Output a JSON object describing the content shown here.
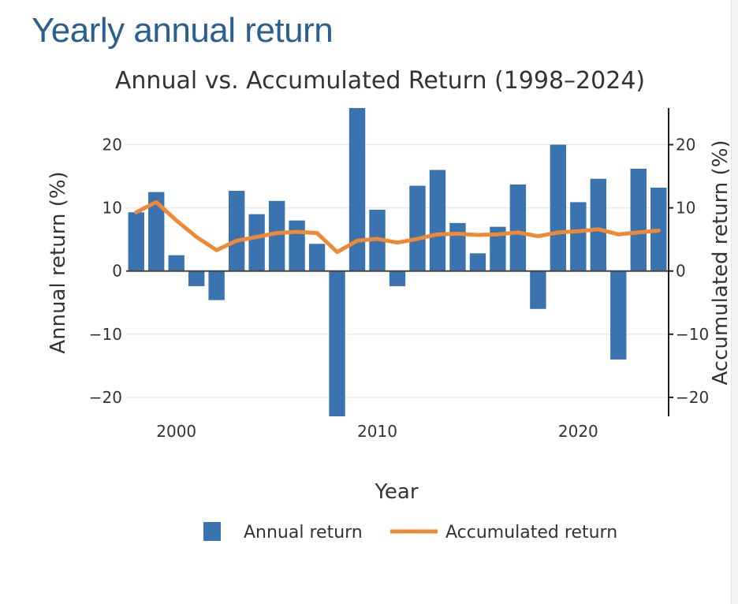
{
  "page": {
    "heading": "Yearly annual return"
  },
  "colors": {
    "heading": "#2a5f8f",
    "bar": "#3a73b0",
    "line": "#ee8a35",
    "grid": "#e9e9e9",
    "text": "#333333"
  },
  "chart_data": {
    "type": "bar",
    "title": "Annual vs. Accumulated Return (1998–2024)",
    "xlabel": "Year",
    "ylabel": "Annual return (%)",
    "y2label": "Accumulated return (%)",
    "x": [
      1998,
      1999,
      2000,
      2001,
      2002,
      2003,
      2004,
      2005,
      2006,
      2007,
      2008,
      2009,
      2010,
      2011,
      2012,
      2013,
      2014,
      2015,
      2016,
      2017,
      2018,
      2019,
      2020,
      2021,
      2022,
      2023,
      2024
    ],
    "series": [
      {
        "name": "Annual return",
        "type": "bar",
        "axis": "left",
        "values": [
          9.3,
          12.5,
          2.5,
          -2.4,
          -4.6,
          12.7,
          9.0,
          11.1,
          8.0,
          4.3,
          -23.0,
          25.8,
          9.7,
          -2.4,
          13.5,
          16.0,
          7.6,
          2.8,
          7.0,
          13.7,
          -6.0,
          20.0,
          10.9,
          14.6,
          -14.0,
          16.2,
          13.2
        ]
      },
      {
        "name": "Accumulated return",
        "type": "line",
        "axis": "right",
        "values": [
          9.3,
          10.9,
          8.0,
          5.4,
          3.3,
          4.8,
          5.4,
          6.0,
          6.2,
          6.0,
          3.0,
          4.8,
          5.1,
          4.5,
          5.1,
          5.8,
          5.9,
          5.7,
          5.8,
          6.1,
          5.5,
          6.1,
          6.3,
          6.6,
          5.8,
          6.1,
          6.4
        ]
      }
    ],
    "ylim": [
      -23.0,
      25.8
    ],
    "y2lim": [
      -23.0,
      25.8
    ],
    "yticks": [
      -20,
      -10,
      0,
      10,
      20
    ],
    "ytick_labels": [
      "−20",
      "−10",
      "0",
      "10",
      "20"
    ],
    "xticks": [
      2000,
      2010,
      2020
    ],
    "xtick_labels": [
      "2000",
      "2010",
      "2020"
    ],
    "grid": true,
    "legend_position": "bottom-center",
    "legend": [
      {
        "label": "Annual return",
        "kind": "bar"
      },
      {
        "label": "Accumulated return",
        "kind": "line"
      }
    ]
  }
}
